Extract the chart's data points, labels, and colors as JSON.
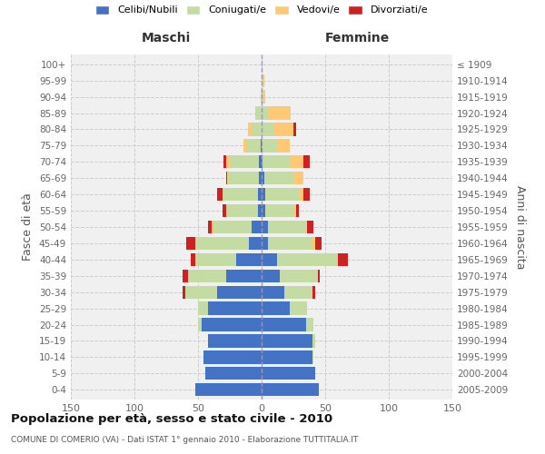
{
  "age_groups": [
    "0-4",
    "5-9",
    "10-14",
    "15-19",
    "20-24",
    "25-29",
    "30-34",
    "35-39",
    "40-44",
    "45-49",
    "50-54",
    "55-59",
    "60-64",
    "65-69",
    "70-74",
    "75-79",
    "80-84",
    "85-89",
    "90-94",
    "95-99",
    "100+"
  ],
  "birth_years": [
    "2005-2009",
    "2000-2004",
    "1995-1999",
    "1990-1994",
    "1985-1989",
    "1980-1984",
    "1975-1979",
    "1970-1974",
    "1965-1969",
    "1960-1964",
    "1955-1959",
    "1950-1954",
    "1945-1949",
    "1940-1944",
    "1935-1939",
    "1930-1934",
    "1925-1929",
    "1920-1924",
    "1915-1919",
    "1910-1914",
    "≤ 1909"
  ],
  "male": {
    "celibi": [
      52,
      44,
      46,
      42,
      47,
      42,
      35,
      28,
      20,
      10,
      8,
      3,
      3,
      2,
      2,
      1,
      0,
      0,
      0,
      0,
      0
    ],
    "coniugati": [
      0,
      0,
      0,
      0,
      3,
      8,
      25,
      30,
      32,
      42,
      30,
      25,
      27,
      24,
      23,
      11,
      7,
      4,
      1,
      0,
      0
    ],
    "vedovi": [
      0,
      0,
      0,
      0,
      0,
      0,
      0,
      0,
      0,
      0,
      1,
      0,
      1,
      1,
      3,
      2,
      4,
      1,
      0,
      0,
      0
    ],
    "divorziati": [
      0,
      0,
      0,
      0,
      0,
      0,
      2,
      4,
      4,
      7,
      3,
      3,
      4,
      1,
      2,
      0,
      0,
      0,
      0,
      0,
      0
    ]
  },
  "female": {
    "nubili": [
      45,
      42,
      40,
      40,
      35,
      22,
      18,
      14,
      12,
      5,
      5,
      3,
      3,
      2,
      1,
      0,
      0,
      0,
      0,
      0,
      0
    ],
    "coniugate": [
      0,
      0,
      1,
      2,
      6,
      14,
      22,
      30,
      48,
      35,
      30,
      22,
      26,
      24,
      22,
      12,
      10,
      5,
      1,
      1,
      0
    ],
    "vedove": [
      0,
      0,
      0,
      0,
      0,
      0,
      0,
      0,
      0,
      2,
      1,
      2,
      4,
      7,
      10,
      10,
      15,
      18,
      2,
      1,
      0
    ],
    "divorziate": [
      0,
      0,
      0,
      0,
      0,
      0,
      2,
      2,
      8,
      5,
      5,
      2,
      5,
      0,
      5,
      0,
      2,
      0,
      0,
      0,
      0
    ]
  },
  "colors": {
    "celibi": "#4472c4",
    "coniugati": "#c5dba4",
    "vedovi": "#ffc875",
    "divorziati": "#cc2222"
  },
  "title": "Popolazione per età, sesso e stato civile - 2010",
  "subtitle": "COMUNE DI COMERIO (VA) - Dati ISTAT 1° gennaio 2010 - Elaborazione TUTTITALIA.IT",
  "xlabel_left": "Maschi",
  "xlabel_right": "Femmine",
  "ylabel_left": "Fasce di età",
  "ylabel_right": "Anni di nascita",
  "xlim": 150,
  "bg_color": "#f0f0f0",
  "grid_color": "#cccccc"
}
